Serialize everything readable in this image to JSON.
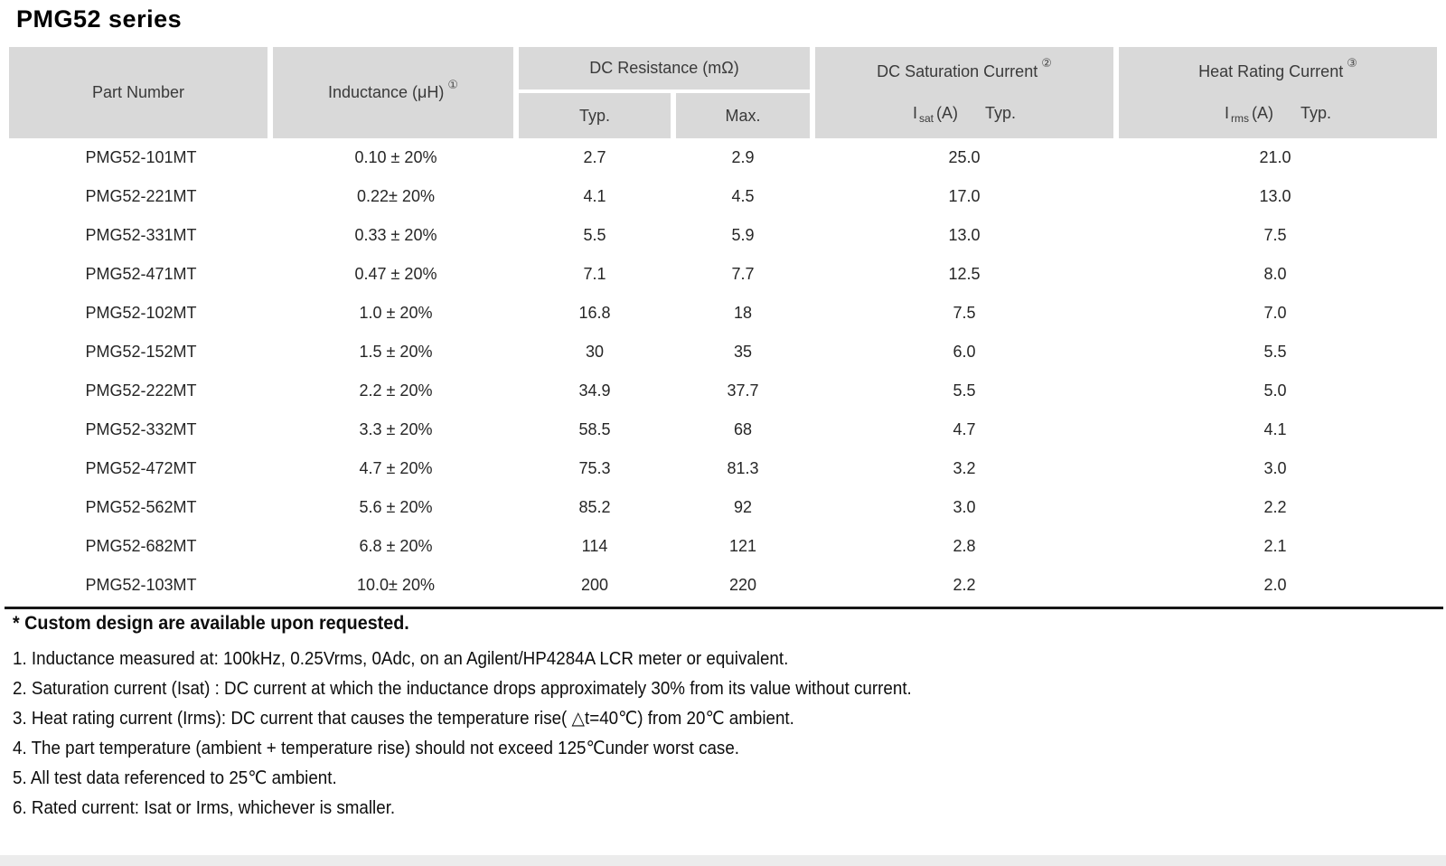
{
  "page": {
    "title": "PMG52 series"
  },
  "colors": {
    "header_bg": "#d9d9d9",
    "body_text": "#262626",
    "rule": "#161616"
  },
  "table": {
    "header": {
      "part_number": "Part Number",
      "inductance": "Inductance (μH)",
      "inductance_note_ref": "①",
      "dc_resistance": "DC Resistance (mΩ)",
      "typ": "Typ.",
      "max": "Max.",
      "saturation": "DC Saturation Current",
      "saturation_note_ref": "②",
      "saturation_sub": {
        "symbol": "I",
        "subscript": "sat",
        "unit": "(A)",
        "qualifier": "Typ."
      },
      "heat": "Heat Rating Current",
      "heat_note_ref": "③",
      "heat_sub": {
        "symbol": "I",
        "subscript": "rms",
        "unit": "(A)",
        "qualifier": "Typ."
      }
    },
    "rows": [
      {
        "part": "PMG52-101MT",
        "inductance": "0.10 ± 20%",
        "typ": "2.7",
        "max": "2.9",
        "isat": "25.0",
        "irms": "21.0"
      },
      {
        "part": "PMG52-221MT",
        "inductance": "0.22± 20%",
        "typ": "4.1",
        "max": "4.5",
        "isat": "17.0",
        "irms": "13.0"
      },
      {
        "part": "PMG52-331MT",
        "inductance": "0.33 ± 20%",
        "typ": "5.5",
        "max": "5.9",
        "isat": "13.0",
        "irms": "7.5"
      },
      {
        "part": "PMG52-471MT",
        "inductance": "0.47 ± 20%",
        "typ": "7.1",
        "max": "7.7",
        "isat": "12.5",
        "irms": "8.0"
      },
      {
        "part": "PMG52-102MT",
        "inductance": "1.0 ± 20%",
        "typ": "16.8",
        "max": "18",
        "isat": "7.5",
        "irms": "7.0"
      },
      {
        "part": "PMG52-152MT",
        "inductance": "1.5 ± 20%",
        "typ": "30",
        "max": "35",
        "isat": "6.0",
        "irms": "5.5"
      },
      {
        "part": "PMG52-222MT",
        "inductance": "2.2 ± 20%",
        "typ": "34.9",
        "max": "37.7",
        "isat": "5.5",
        "irms": "5.0"
      },
      {
        "part": "PMG52-332MT",
        "inductance": "3.3 ± 20%",
        "typ": "58.5",
        "max": "68",
        "isat": "4.7",
        "irms": "4.1"
      },
      {
        "part": "PMG52-472MT",
        "inductance": "4.7 ± 20%",
        "typ": "75.3",
        "max": "81.3",
        "isat": "3.2",
        "irms": "3.0"
      },
      {
        "part": "PMG52-562MT",
        "inductance": "5.6 ± 20%",
        "typ": "85.2",
        "max": "92",
        "isat": "3.0",
        "irms": "2.2"
      },
      {
        "part": "PMG52-682MT",
        "inductance": "6.8 ± 20%",
        "typ": "114",
        "max": "121",
        "isat": "2.8",
        "irms": "2.1"
      },
      {
        "part": "PMG52-103MT",
        "inductance": "10.0± 20%",
        "typ": "200",
        "max": "220",
        "isat": "2.2",
        "irms": "2.0"
      }
    ]
  },
  "notes": {
    "custom": "* Custom design are available upon requested.",
    "items": [
      "1. Inductance measured at: 100kHz, 0.25Vrms, 0Adc, on an Agilent/HP4284A LCR meter or equivalent.",
      "2. Saturation current (Isat) : DC current at which the inductance drops approximately 30% from its value without current.",
      "3. Heat rating current (Irms): DC current that causes the temperature rise( △t=40℃) from 20℃ ambient.",
      "4. The part temperature (ambient + temperature rise) should not exceed 125℃under worst case.",
      "5. All test data referenced to 25℃ ambient.",
      "6. Rated current: Isat or Irms, whichever is smaller."
    ]
  }
}
